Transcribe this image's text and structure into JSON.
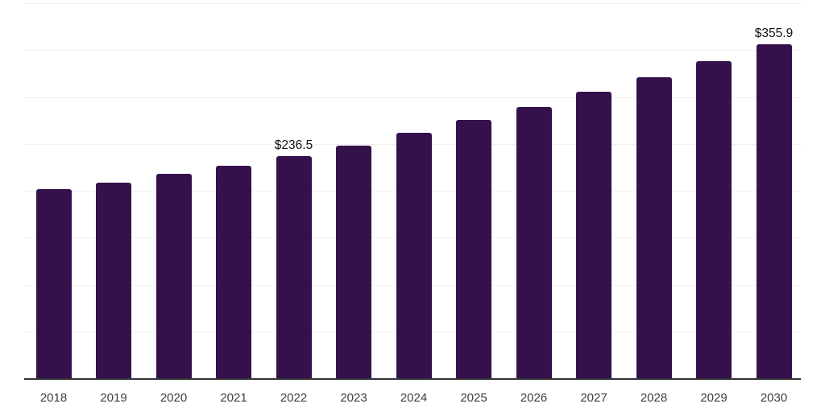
{
  "page": {
    "background": "#ffffff"
  },
  "chart_data": {
    "type": "bar",
    "title": "",
    "xlabel": "",
    "ylabel": "",
    "categories": [
      "2018",
      "2019",
      "2020",
      "2021",
      "2022",
      "2023",
      "2024",
      "2025",
      "2026",
      "2027",
      "2028",
      "2029",
      "2030"
    ],
    "values": [
      201.5,
      208.3,
      217.7,
      226.2,
      236.5,
      248.4,
      262.1,
      275.7,
      289.4,
      305.6,
      321.0,
      338.0,
      355.9
    ],
    "data_labels": {
      "2022": "$236.5",
      "2030": "$355.9"
    },
    "ylim": [
      0,
      400
    ],
    "grid_step": 50,
    "grid": true,
    "legend": "none",
    "y_axis_ticks_visible": false,
    "colors": {
      "bar": "#35114C",
      "gridline": "#f0f0f0",
      "axis_line": "#333333",
      "x_tick_text": "#3d3d3d",
      "value_label_text": "#111111",
      "background": "#ffffff"
    }
  }
}
